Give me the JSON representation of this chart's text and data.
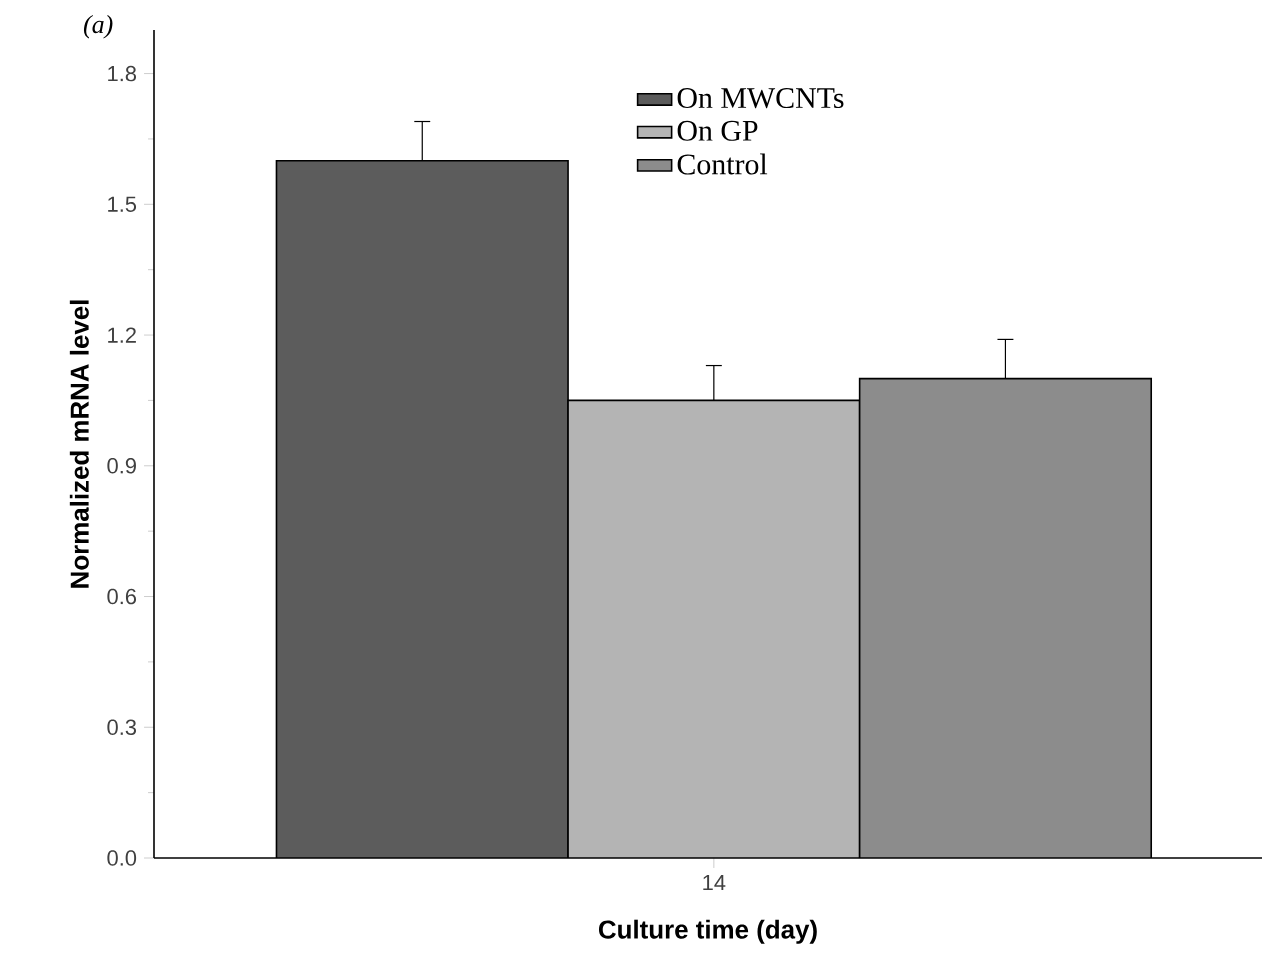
{
  "chart_data": {
    "type": "bar",
    "xlabel": "Culture time (day)",
    "ylabel": "Normalized mRNA level",
    "annotations": [
      "(a)"
    ],
    "categories": [
      "14"
    ],
    "series": [
      {
        "name": "On MWCNTs",
        "color": "#5c5c5c",
        "values": [
          1.6
        ],
        "errors": [
          0.09
        ]
      },
      {
        "name": "On GP",
        "color": "#b4b4b4",
        "values": [
          1.05
        ],
        "errors": [
          0.08
        ]
      },
      {
        "name": "Control",
        "color": "#8c8c8c",
        "values": [
          1.1
        ],
        "errors": [
          0.09
        ]
      }
    ],
    "ylim": [
      0,
      1.9
    ],
    "yticks": [
      {
        "value": 0,
        "label": "0.0"
      },
      0.3,
      0.6,
      0.9,
      1.2,
      1.5,
      1.8
    ],
    "grid": false,
    "legend": "top right"
  }
}
